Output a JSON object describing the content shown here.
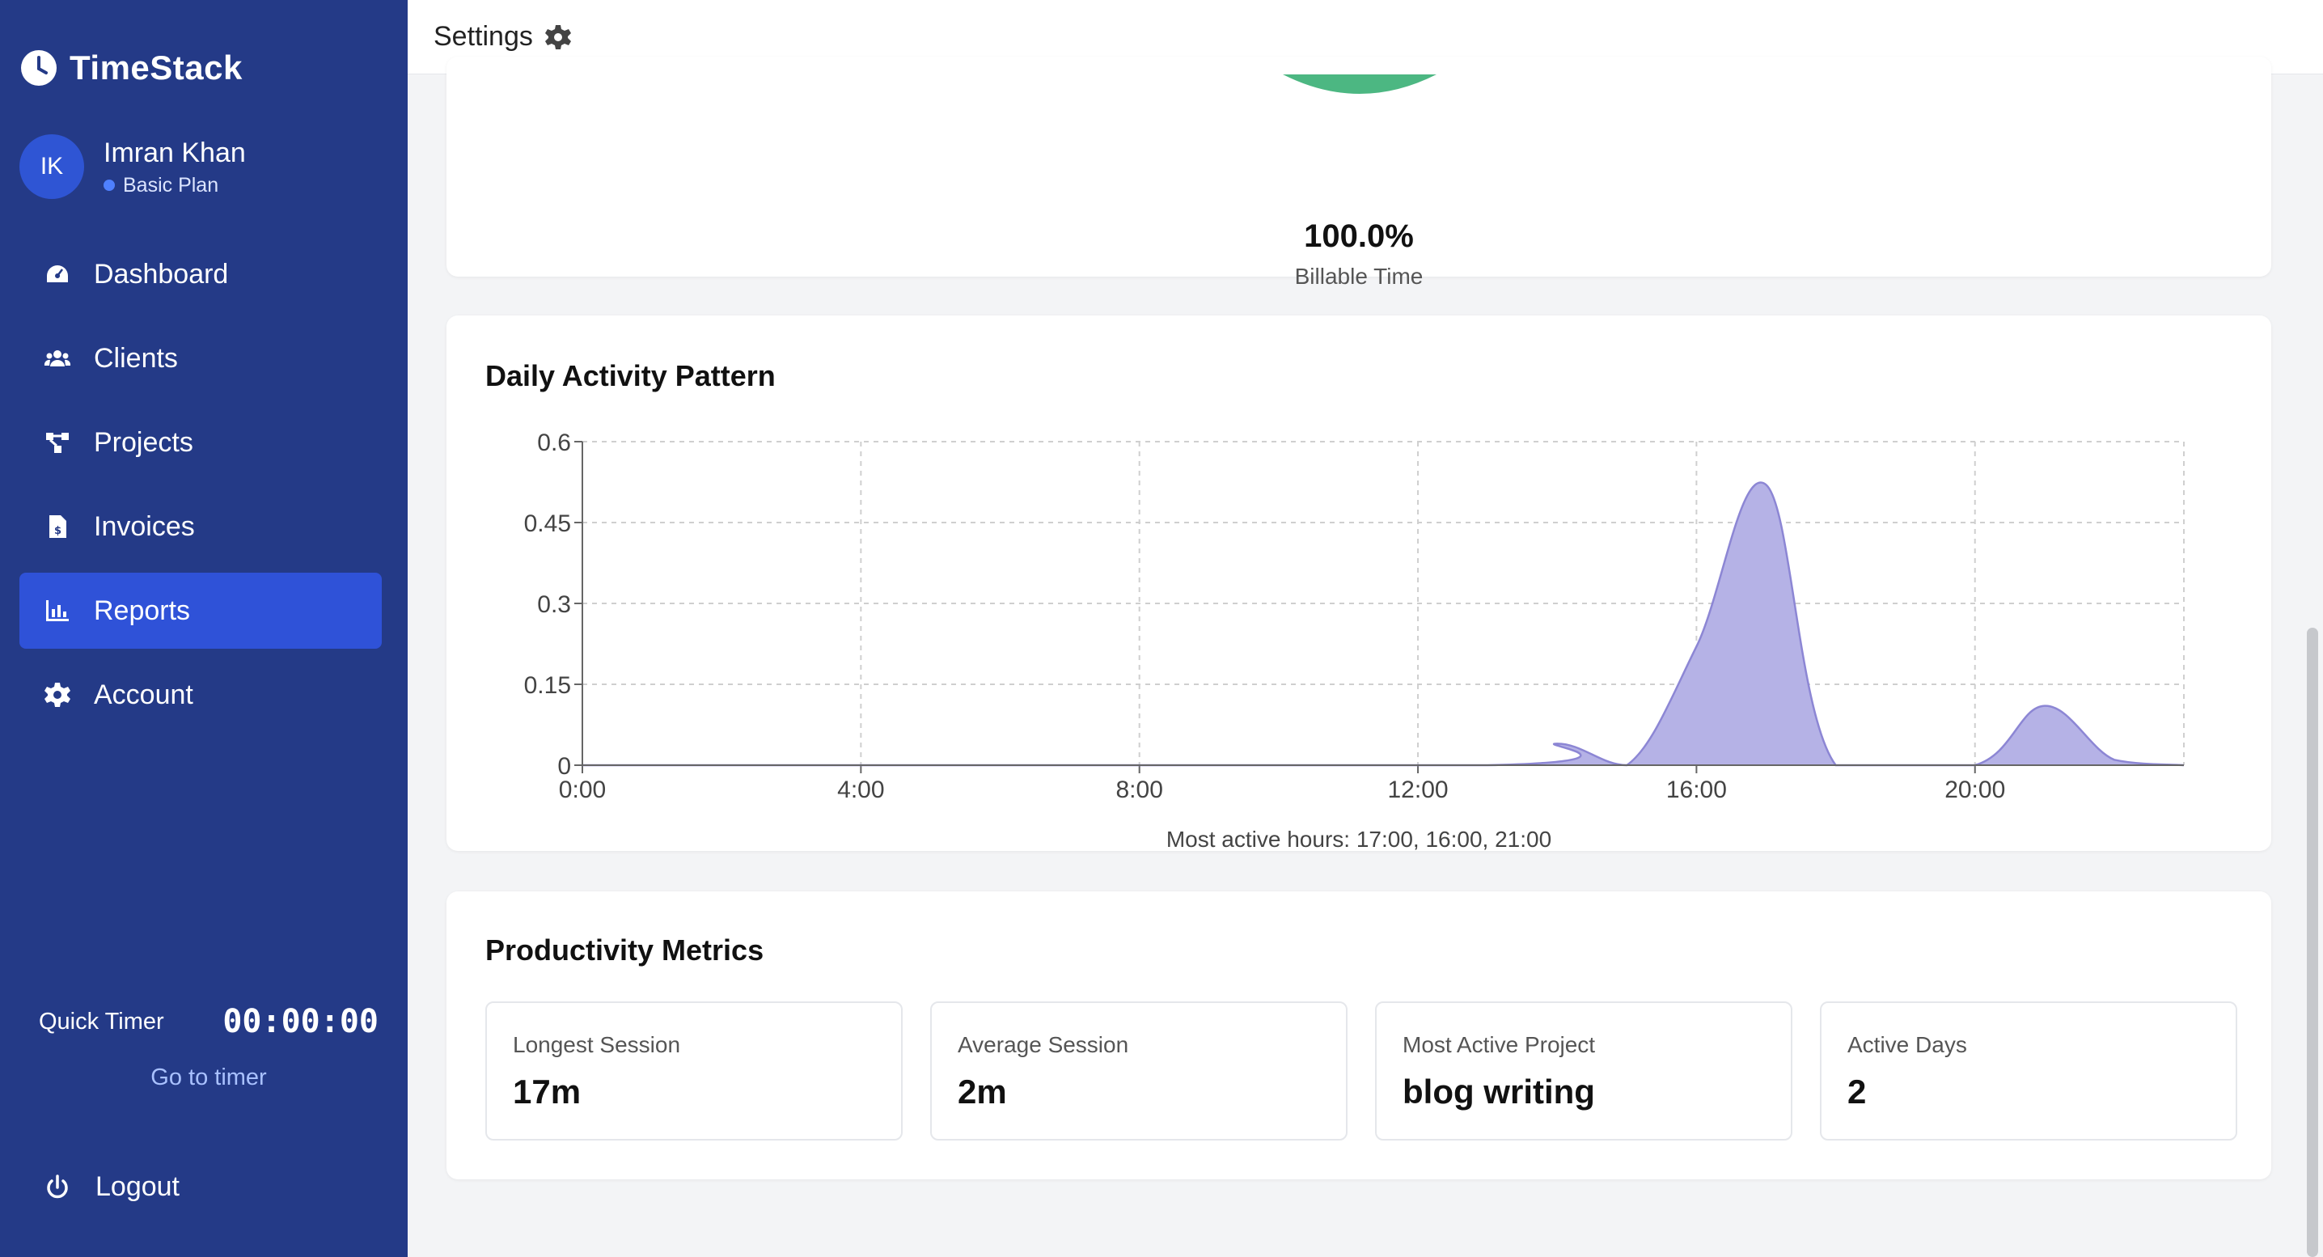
{
  "app": {
    "name": "TimeStack"
  },
  "user": {
    "initials": "IK",
    "name": "Imran Khan",
    "plan": "Basic Plan"
  },
  "nav": {
    "items": [
      {
        "label": "Dashboard",
        "icon": "dashboard-icon"
      },
      {
        "label": "Clients",
        "icon": "users-icon"
      },
      {
        "label": "Projects",
        "icon": "projects-icon"
      },
      {
        "label": "Invoices",
        "icon": "invoice-icon"
      },
      {
        "label": "Reports",
        "icon": "chart-bar-icon",
        "active": true
      },
      {
        "label": "Account",
        "icon": "gear-icon"
      }
    ]
  },
  "quick_timer": {
    "label": "Quick Timer",
    "value": "00:00:00",
    "link": "Go to timer"
  },
  "logout": {
    "label": "Logout"
  },
  "header": {
    "title": "Settings"
  },
  "billable": {
    "value": "100.0%",
    "label": "Billable Time",
    "color": "#4cb782"
  },
  "activity": {
    "title": "Daily Activity Pattern",
    "caption": "Most active hours: 17:00, 16:00, 21:00"
  },
  "chart_data": {
    "type": "area",
    "x": [
      0,
      13,
      14,
      15,
      16,
      17,
      18,
      20,
      21,
      22,
      23
    ],
    "values": [
      0,
      0,
      0.04,
      0,
      0.22,
      0.52,
      0,
      0,
      0.11,
      0.01,
      0
    ],
    "ylim": [
      0,
      0.6
    ],
    "yticks": [
      "0",
      "0.15",
      "0.3",
      "0.45",
      "0.6"
    ],
    "xticks": [
      "0:00",
      "4:00",
      "8:00",
      "12:00",
      "16:00",
      "20:00"
    ],
    "grid": true,
    "color": "#8c86d4",
    "fill": "#b5b2e6"
  },
  "metrics": {
    "title": "Productivity Metrics",
    "items": [
      {
        "label": "Longest Session",
        "value": "17m"
      },
      {
        "label": "Average Session",
        "value": "2m"
      },
      {
        "label": "Most Active Project",
        "value": "blog writing"
      },
      {
        "label": "Active Days",
        "value": "2"
      }
    ]
  }
}
